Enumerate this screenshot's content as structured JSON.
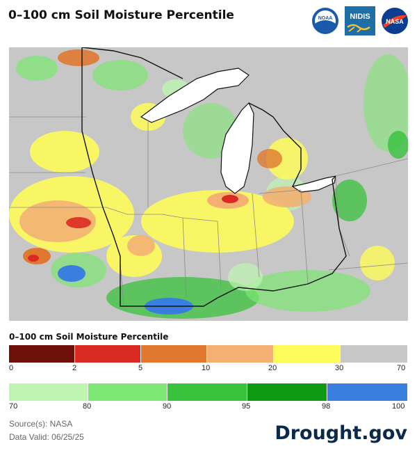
{
  "header": {
    "title": "0–100 cm Soil Moisture Percentile",
    "logos": [
      {
        "name": "noaa-logo",
        "text": "NOAA"
      },
      {
        "name": "nidis-logo",
        "text": "NIDIS"
      },
      {
        "name": "nasa-logo",
        "text": "NASA"
      }
    ]
  },
  "map": {
    "region": "Upper Midwest and Great Lakes",
    "colors": {
      "background_gray": "#c7c7c7",
      "lake": "#ffffff",
      "border": "#111111",
      "state_line": "#8a8a8a"
    }
  },
  "legend": {
    "title": "0–100 cm Soil Moisture Percentile",
    "dry": {
      "bins": [
        {
          "from": 0,
          "to": 2,
          "color": "#6e1008"
        },
        {
          "from": 2,
          "to": 5,
          "color": "#d92b22"
        },
        {
          "from": 5,
          "to": 10,
          "color": "#e07830"
        },
        {
          "from": 10,
          "to": 20,
          "color": "#f2b173"
        },
        {
          "from": 20,
          "to": 30,
          "color": "#fdfb5a"
        },
        {
          "from": 30,
          "to": 70,
          "color": "#c7c7c7"
        }
      ],
      "ticks": [
        "0",
        "2",
        "5",
        "10",
        "20",
        "30",
        "70"
      ]
    },
    "wet": {
      "bins": [
        {
          "from": 70,
          "to": 80,
          "color": "#bff4b0"
        },
        {
          "from": 80,
          "to": 90,
          "color": "#7ee673"
        },
        {
          "from": 90,
          "to": 95,
          "color": "#38c23b"
        },
        {
          "from": 95,
          "to": 98,
          "color": "#0e9a12"
        },
        {
          "from": 98,
          "to": 100,
          "color": "#3a7fe0"
        }
      ],
      "ticks": [
        "70",
        "80",
        "90",
        "95",
        "98",
        "100"
      ]
    }
  },
  "footer": {
    "source": "Source(s): NASA",
    "valid": "Data Valid: 06/25/25",
    "brand": "Drought.gov"
  }
}
